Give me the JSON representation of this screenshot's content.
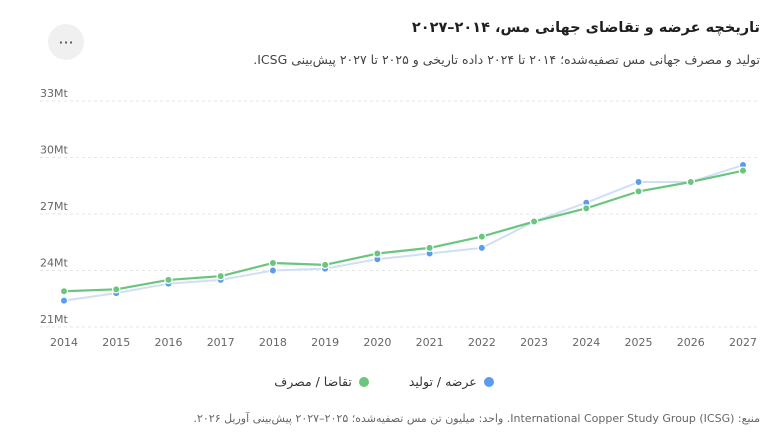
{
  "header": {
    "title": "تاریخچه عرضه و تقاضای جهانی مس، ۲۰۱۴–۲۰۲۷",
    "subtitle": "تولید و مصرف جهانی مس تصفیه‌شده؛ ۲۰۱۴ تا ۲۰۲۴ داده تاریخی و ۲۰۲۵ تا ۲۰۲۷ پیش‌بینی ICSG.",
    "menu_label": "···"
  },
  "source": "منبع: International Copper Study Group (ICSG). واحد: میلیون تن مس تصفیه‌شده؛ ۲۰۲۵–۲۰۲۷ پیش‌بینی آوریل ۲۰۲۶.",
  "chart_data": {
    "type": "line",
    "x": [
      "2014",
      "2015",
      "2016",
      "2017",
      "2018",
      "2019",
      "2020",
      "2021",
      "2022",
      "2023",
      "2024",
      "2025",
      "2026",
      "2027"
    ],
    "yticks": [
      "21Mt",
      "24Mt",
      "27Mt",
      "30Mt",
      "33Mt"
    ],
    "ylim": [
      21,
      33
    ],
    "grid": true,
    "legend_position": "bottom",
    "series": [
      {
        "name": "عرضه / تولید",
        "color": "#5b9cf0",
        "line_color": "#cfe0f5",
        "values": [
          22.4,
          22.8,
          23.3,
          23.5,
          24.0,
          24.1,
          24.6,
          24.9,
          25.2,
          26.6,
          27.6,
          28.7,
          28.7,
          29.6
        ]
      },
      {
        "name": "تقاضا / مصرف",
        "color": "#6cc57e",
        "line_color": "#6cc57e",
        "values": [
          22.9,
          23.0,
          23.5,
          23.7,
          24.4,
          24.3,
          24.9,
          25.2,
          25.8,
          26.6,
          27.3,
          28.2,
          28.7,
          29.3
        ]
      }
    ]
  }
}
